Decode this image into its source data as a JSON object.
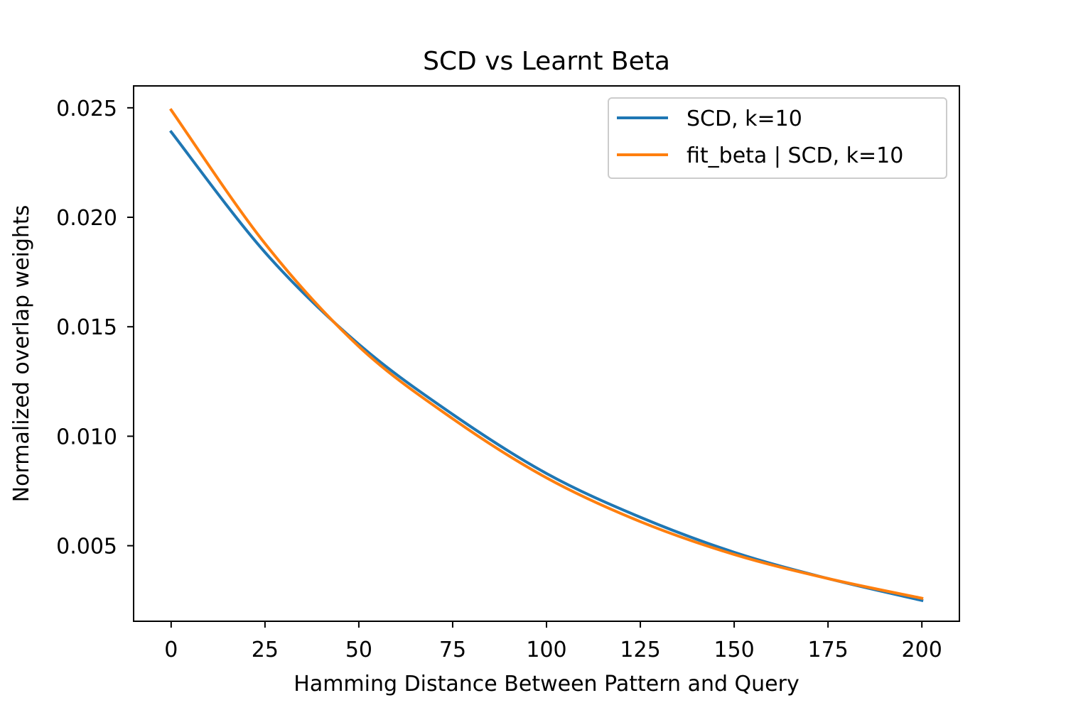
{
  "chart_data": {
    "type": "line",
    "title": "SCD vs Learnt Beta",
    "xlabel": "Hamming Distance Between Pattern and Query",
    "ylabel": "Normalized overlap weights",
    "xlim": [
      -10,
      210
    ],
    "ylim": [
      0.00155,
      0.026
    ],
    "xticks": [
      0,
      25,
      50,
      75,
      100,
      125,
      150,
      175,
      200
    ],
    "xtick_labels": [
      "0",
      "25",
      "50",
      "75",
      "100",
      "125",
      "150",
      "175",
      "200"
    ],
    "yticks": [
      0.005,
      0.01,
      0.015,
      0.02,
      0.025
    ],
    "ytick_labels": [
      "0.005",
      "0.010",
      "0.015",
      "0.020",
      "0.025"
    ],
    "grid": false,
    "legend_position": "top-right",
    "x": [
      0,
      25,
      50,
      75,
      100,
      125,
      150,
      175,
      200
    ],
    "series": [
      {
        "name": "SCD, k=10",
        "color": "#1f77b4",
        "values": [
          0.0239,
          0.0184,
          0.0142,
          0.011,
          0.0083,
          0.0063,
          0.0047,
          0.0035,
          0.0025
        ]
      },
      {
        "name": "fit_beta | SCD, k=10",
        "color": "#ff7f0e",
        "values": [
          0.0249,
          0.0188,
          0.0141,
          0.0108,
          0.0081,
          0.0061,
          0.0046,
          0.0035,
          0.0026
        ]
      }
    ]
  }
}
